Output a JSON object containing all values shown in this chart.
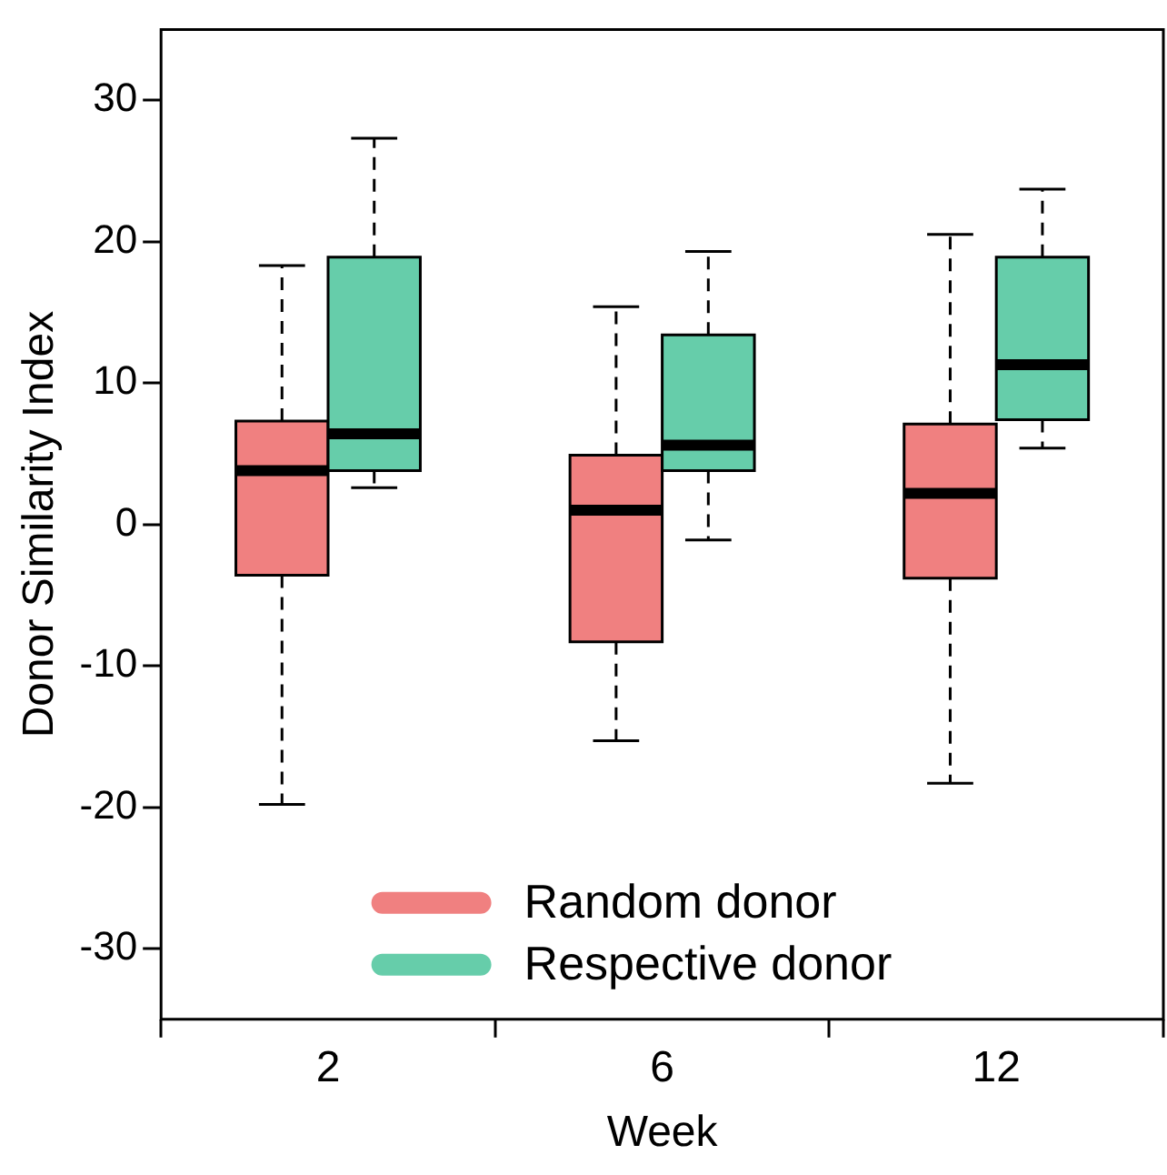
{
  "chart_data": {
    "type": "box",
    "xlabel": "Week",
    "ylabel": "Donor Similarity Index",
    "categories": [
      "2",
      "6",
      "12"
    ],
    "series": [
      {
        "name": "Random donor",
        "color": "#f08080",
        "boxes": [
          {
            "low": -19.8,
            "q1": -3.6,
            "median": 3.8,
            "q3": 7.3,
            "high": 18.3
          },
          {
            "low": -15.3,
            "q1": -8.3,
            "median": 1.0,
            "q3": 4.9,
            "high": 15.4
          },
          {
            "low": -18.3,
            "q1": -3.8,
            "median": 2.2,
            "q3": 7.1,
            "high": 20.5
          }
        ]
      },
      {
        "name": "Respective donor",
        "color": "#66cdaa",
        "boxes": [
          {
            "low": 2.6,
            "q1": 3.8,
            "median": 6.4,
            "q3": 18.9,
            "high": 27.3
          },
          {
            "low": -1.1,
            "q1": 3.8,
            "median": 5.6,
            "q3": 13.4,
            "high": 19.3
          },
          {
            "low": 5.4,
            "q1": 7.4,
            "median": 11.3,
            "q3": 18.9,
            "high": 23.7
          }
        ]
      }
    ],
    "ylim": [
      -35,
      35
    ],
    "yticks": [
      -30,
      -20,
      -10,
      0,
      10,
      20,
      30
    ],
    "grid": false,
    "legend": "bottom",
    "line_style": "dashed"
  }
}
